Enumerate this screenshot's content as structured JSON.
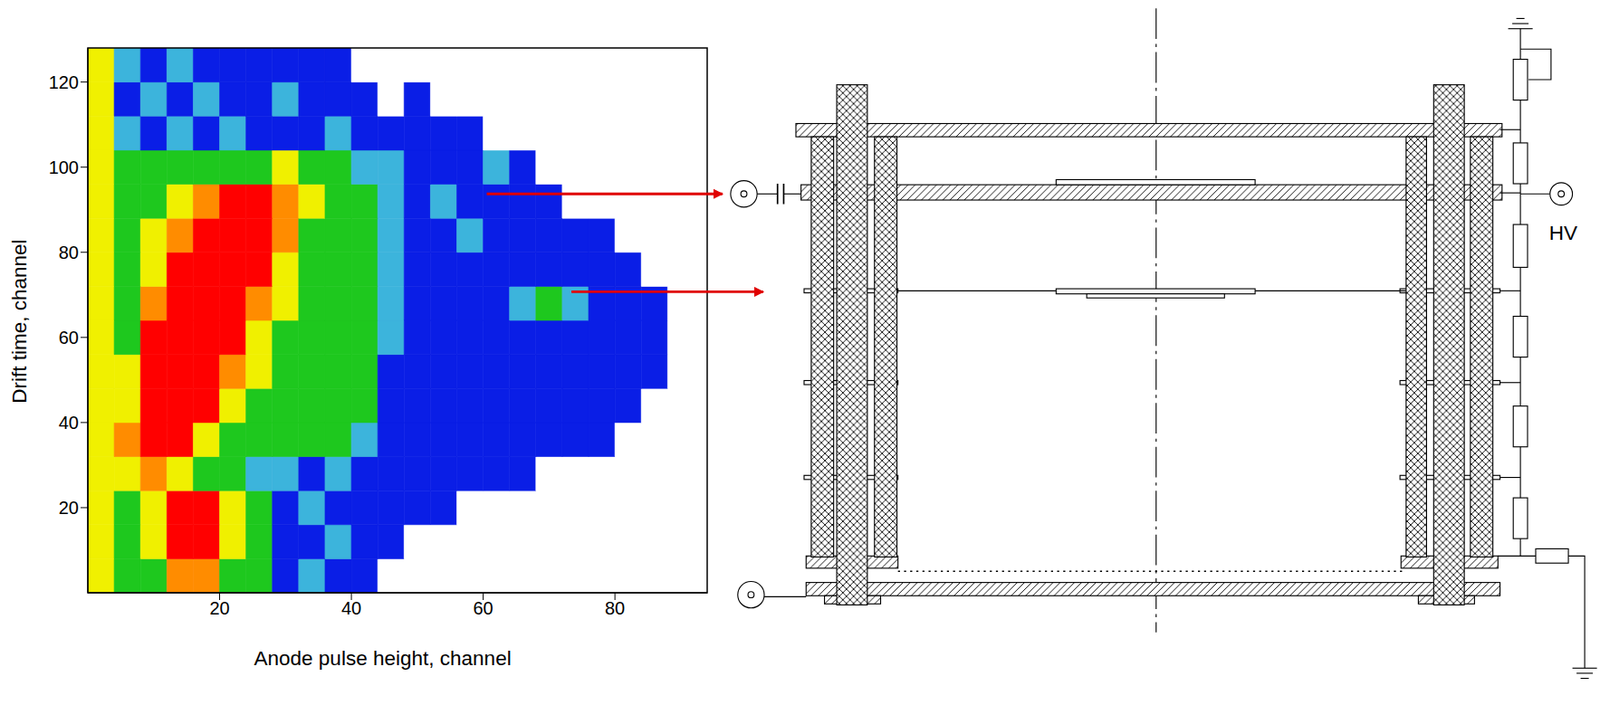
{
  "chart_data": {
    "type": "heatmap",
    "x_label": "Anode pulse height, channel",
    "y_label": "Drift time, channel",
    "xlim": [
      0,
      94
    ],
    "ylim": [
      0,
      128
    ],
    "xticks": [
      20,
      40,
      60,
      80
    ],
    "yticks": [
      20,
      40,
      60,
      80,
      100,
      120
    ],
    "x_edges": [
      0,
      4,
      8,
      12,
      16,
      20,
      24,
      28,
      32,
      36,
      40,
      44,
      48,
      52,
      56,
      60,
      64,
      68,
      72,
      76,
      80,
      84,
      88,
      92,
      96
    ],
    "y_edges": [
      0,
      8,
      16,
      24,
      32,
      40,
      48,
      56,
      64,
      72,
      80,
      88,
      96,
      104,
      112,
      120,
      128
    ],
    "z": [
      [
        4,
        3,
        3,
        5,
        5,
        3,
        3,
        1,
        2,
        1,
        1,
        0,
        0,
        0,
        0,
        0,
        0,
        0,
        0,
        0,
        0,
        0,
        0,
        0
      ],
      [
        4,
        3,
        4,
        6,
        6,
        4,
        3,
        1,
        1,
        2,
        1,
        1,
        0,
        0,
        0,
        0,
        0,
        0,
        0,
        0,
        0,
        0,
        0,
        0
      ],
      [
        4,
        3,
        4,
        6,
        6,
        4,
        3,
        1,
        2,
        1,
        1,
        1,
        1,
        1,
        0,
        0,
        0,
        0,
        0,
        0,
        0,
        0,
        0,
        0
      ],
      [
        4,
        4,
        5,
        4,
        3,
        3,
        2,
        2,
        1,
        2,
        1,
        1,
        1,
        1,
        1,
        1,
        1,
        0,
        0,
        0,
        0,
        0,
        0,
        0
      ],
      [
        4,
        5,
        6,
        6,
        4,
        3,
        3,
        3,
        3,
        3,
        2,
        1,
        1,
        1,
        1,
        1,
        1,
        1,
        1,
        1,
        0,
        0,
        0,
        0
      ],
      [
        4,
        4,
        6,
        6,
        6,
        4,
        3,
        3,
        3,
        3,
        3,
        1,
        1,
        1,
        1,
        1,
        1,
        1,
        1,
        1,
        1,
        0,
        0,
        0
      ],
      [
        4,
        4,
        6,
        6,
        6,
        5,
        4,
        3,
        3,
        3,
        3,
        1,
        1,
        1,
        1,
        1,
        1,
        1,
        1,
        1,
        1,
        1,
        0,
        0
      ],
      [
        4,
        3,
        6,
        6,
        6,
        6,
        4,
        3,
        3,
        3,
        3,
        2,
        1,
        1,
        1,
        1,
        1,
        1,
        1,
        1,
        1,
        1,
        0,
        0
      ],
      [
        4,
        3,
        5,
        6,
        6,
        6,
        5,
        4,
        3,
        3,
        3,
        2,
        1,
        1,
        1,
        1,
        2,
        3,
        2,
        1,
        1,
        1,
        0,
        0
      ],
      [
        4,
        3,
        4,
        6,
        6,
        6,
        6,
        4,
        3,
        3,
        3,
        2,
        1,
        1,
        1,
        1,
        1,
        1,
        1,
        1,
        1,
        0,
        0,
        0
      ],
      [
        4,
        3,
        4,
        5,
        6,
        6,
        6,
        5,
        3,
        3,
        3,
        2,
        1,
        1,
        2,
        1,
        1,
        1,
        1,
        1,
        0,
        0,
        0,
        0
      ],
      [
        4,
        3,
        3,
        4,
        5,
        6,
        6,
        5,
        4,
        3,
        3,
        2,
        1,
        2,
        1,
        1,
        1,
        1,
        0,
        0,
        0,
        0,
        0,
        0
      ],
      [
        4,
        3,
        3,
        3,
        3,
        3,
        3,
        4,
        3,
        3,
        2,
        2,
        1,
        1,
        1,
        2,
        1,
        0,
        0,
        0,
        0,
        0,
        0,
        0
      ],
      [
        4,
        2,
        1,
        2,
        1,
        2,
        1,
        1,
        1,
        2,
        1,
        1,
        1,
        1,
        1,
        0,
        0,
        0,
        0,
        0,
        0,
        0,
        0,
        0
      ],
      [
        4,
        1,
        2,
        1,
        2,
        1,
        1,
        2,
        1,
        1,
        1,
        0,
        1,
        0,
        0,
        0,
        0,
        0,
        0,
        0,
        0,
        0,
        0,
        0
      ],
      [
        4,
        2,
        1,
        2,
        1,
        1,
        1,
        1,
        1,
        1,
        0,
        0,
        0,
        0,
        0,
        0,
        0,
        0,
        0,
        0,
        0,
        0,
        0,
        0
      ]
    ],
    "colors": [
      "#ffffff",
      "#0a1ee6",
      "#3cb4dc",
      "#1ec81e",
      "#f0f000",
      "#ff8c00",
      "#ff0000"
    ]
  },
  "diagram": {
    "hv_label": "HV"
  }
}
